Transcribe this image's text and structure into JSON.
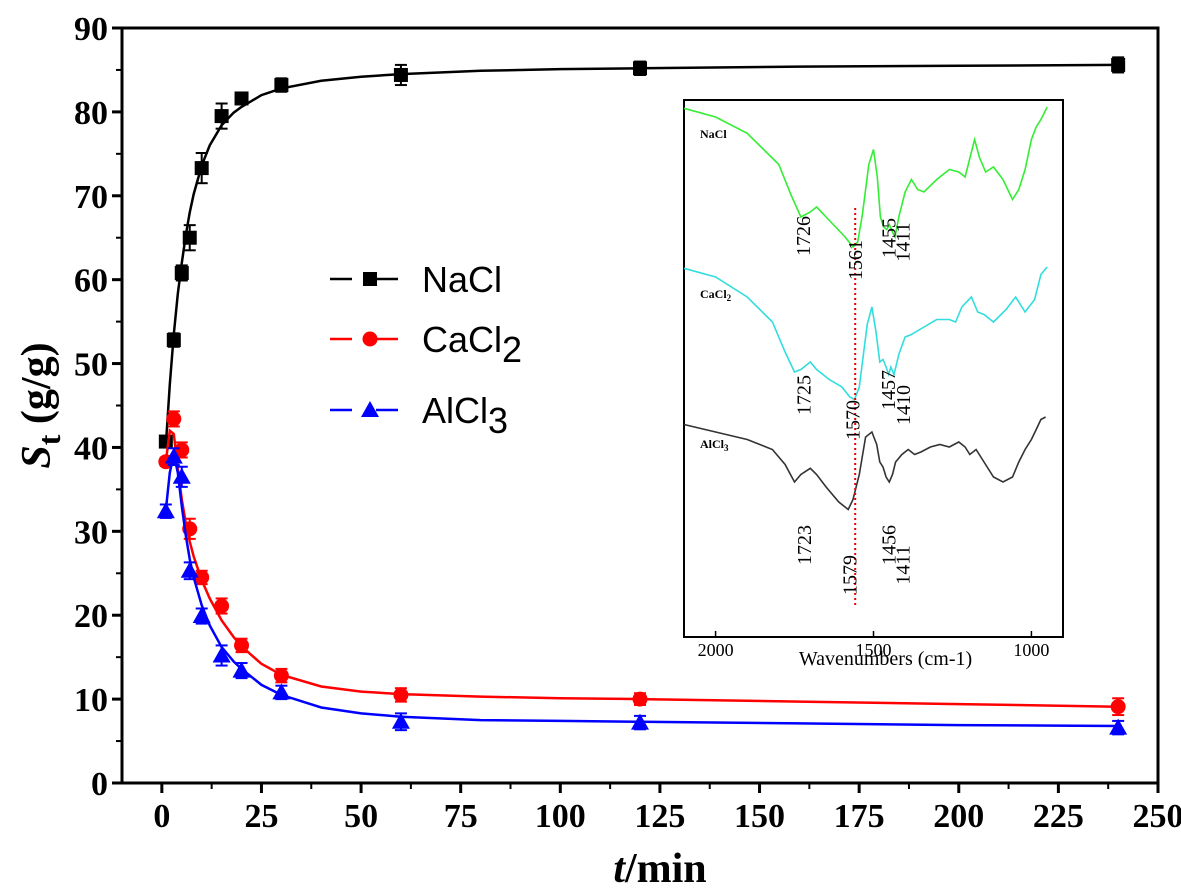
{
  "chart_data": {
    "type": "line",
    "xlabel": "min",
    "xlabel_italic": "t",
    "xlabel_sep": "/",
    "ylabel_main": "S",
    "ylabel_sub": "t",
    "ylabel_unit": " (g/g)",
    "xlim": [
      -10,
      250
    ],
    "ylim": [
      0,
      90
    ],
    "xticks": [
      "0",
      "25",
      "50",
      "75",
      "100",
      "125",
      "150",
      "175",
      "200",
      "225",
      "250"
    ],
    "yticks": [
      "0",
      "10",
      "20",
      "30",
      "40",
      "50",
      "60",
      "70",
      "80",
      "90"
    ],
    "legend_position": "center-left",
    "series": [
      {
        "name": "NaCl",
        "name_sub": "",
        "color": "#000000",
        "marker": "square",
        "x": [
          1,
          3,
          5,
          7,
          10,
          15,
          20,
          30,
          60,
          120,
          240
        ],
        "y": [
          40.7,
          52.8,
          60.8,
          65.0,
          73.3,
          79.5,
          81.6,
          83.2,
          84.4,
          85.2,
          85.6
        ],
        "err": [
          0.6,
          0.8,
          0.9,
          1.5,
          1.8,
          1.5,
          0.6,
          0.8,
          1.2,
          0.8,
          0.9
        ],
        "fit": [
          [
            1,
            40.2
          ],
          [
            2,
            47.5
          ],
          [
            3,
            53.5
          ],
          [
            4,
            58.3
          ],
          [
            5,
            62.0
          ],
          [
            6,
            65.3
          ],
          [
            7,
            68.0
          ],
          [
            8,
            70.2
          ],
          [
            10,
            73.6
          ],
          [
            12,
            76.0
          ],
          [
            15,
            78.4
          ],
          [
            18,
            79.9
          ],
          [
            20,
            80.6
          ],
          [
            25,
            82.0
          ],
          [
            30,
            82.8
          ],
          [
            40,
            83.7
          ],
          [
            50,
            84.2
          ],
          [
            60,
            84.5
          ],
          [
            80,
            84.9
          ],
          [
            100,
            85.1
          ],
          [
            120,
            85.2
          ],
          [
            160,
            85.4
          ],
          [
            200,
            85.5
          ],
          [
            240,
            85.6
          ]
        ]
      },
      {
        "name": "CaCl",
        "name_sub": "2",
        "color": "#ff0000",
        "marker": "circle",
        "x": [
          1,
          3,
          5,
          7,
          10,
          15,
          20,
          30,
          60,
          120,
          240
        ],
        "y": [
          38.3,
          43.4,
          39.7,
          30.3,
          24.5,
          21.1,
          16.4,
          12.8,
          10.5,
          10.0,
          9.1
        ],
        "err": [
          0.5,
          0.9,
          0.9,
          1.2,
          0.8,
          0.9,
          0.8,
          0.8,
          0.8,
          0.7,
          1.0
        ],
        "fit": [
          [
            1,
            38.3
          ],
          [
            2,
            42.0
          ],
          [
            3,
            41.6
          ],
          [
            4,
            37.5
          ],
          [
            5,
            33.8
          ],
          [
            6,
            31.0
          ],
          [
            7,
            28.8
          ],
          [
            8,
            27.0
          ],
          [
            10,
            24.2
          ],
          [
            12,
            22.0
          ],
          [
            15,
            19.4
          ],
          [
            18,
            17.4
          ],
          [
            20,
            16.3
          ],
          [
            25,
            14.2
          ],
          [
            30,
            12.9
          ],
          [
            40,
            11.5
          ],
          [
            50,
            10.9
          ],
          [
            60,
            10.6
          ],
          [
            80,
            10.3
          ],
          [
            100,
            10.1
          ],
          [
            120,
            10.0
          ],
          [
            160,
            9.7
          ],
          [
            200,
            9.4
          ],
          [
            240,
            9.1
          ]
        ]
      },
      {
        "name": "AlCl",
        "name_sub": "3",
        "color": "#0000ff",
        "marker": "triangle",
        "x": [
          1,
          3,
          5,
          7,
          10,
          15,
          20,
          30,
          60,
          120,
          240
        ],
        "y": [
          32.4,
          38.9,
          36.5,
          25.3,
          19.9,
          15.2,
          13.4,
          10.8,
          7.3,
          7.2,
          6.6
        ],
        "err": [
          0.8,
          1.0,
          1.2,
          1.0,
          0.9,
          1.2,
          0.9,
          0.8,
          1.0,
          0.8,
          0.8
        ],
        "fit": [
          [
            1,
            32.5
          ],
          [
            2,
            37.0
          ],
          [
            3,
            39.2
          ],
          [
            4,
            37.0
          ],
          [
            5,
            33.0
          ],
          [
            6,
            29.5
          ],
          [
            7,
            26.7
          ],
          [
            8,
            24.5
          ],
          [
            10,
            21.2
          ],
          [
            12,
            18.8
          ],
          [
            15,
            16.2
          ],
          [
            18,
            14.5
          ],
          [
            20,
            13.6
          ],
          [
            25,
            11.7
          ],
          [
            30,
            10.5
          ],
          [
            40,
            9.0
          ],
          [
            50,
            8.3
          ],
          [
            60,
            7.9
          ],
          [
            80,
            7.5
          ],
          [
            100,
            7.4
          ],
          [
            120,
            7.3
          ],
          [
            160,
            7.1
          ],
          [
            200,
            6.9
          ],
          [
            240,
            6.8
          ]
        ]
      }
    ],
    "inset": {
      "xlabel": "Wavenumbers (cm-1)",
      "xticks": [
        "2000",
        "1500",
        "1000"
      ],
      "xtick_values": [
        2000,
        1500,
        1000
      ],
      "xlim": [
        2100,
        900
      ],
      "marker_line_x": 1558,
      "spectra": [
        {
          "name": "NaCl",
          "color": "#33ee33",
          "offset": 0,
          "points": [
            [
              2100,
              5
            ],
            [
              2000,
              12
            ],
            [
              1900,
              25
            ],
            [
              1800,
              50
            ],
            [
              1760,
              75
            ],
            [
              1730,
              92
            ],
            [
              1700,
              88
            ],
            [
              1680,
              84
            ],
            [
              1650,
              92
            ],
            [
              1620,
              100
            ],
            [
              1590,
              108
            ],
            [
              1565,
              116
            ],
            [
              1550,
              112
            ],
            [
              1535,
              90
            ],
            [
              1515,
              50
            ],
            [
              1500,
              38
            ],
            [
              1488,
              60
            ],
            [
              1478,
              92
            ],
            [
              1468,
              100
            ],
            [
              1458,
              102
            ],
            [
              1450,
              98
            ],
            [
              1440,
              104
            ],
            [
              1432,
              108
            ],
            [
              1420,
              92
            ],
            [
              1400,
              72
            ],
            [
              1380,
              62
            ],
            [
              1360,
              70
            ],
            [
              1340,
              72
            ],
            [
              1300,
              62
            ],
            [
              1260,
              54
            ],
            [
              1230,
              56
            ],
            [
              1210,
              60
            ],
            [
              1190,
              40
            ],
            [
              1180,
              30
            ],
            [
              1165,
              44
            ],
            [
              1145,
              56
            ],
            [
              1120,
              52
            ],
            [
              1090,
              62
            ],
            [
              1060,
              78
            ],
            [
              1040,
              70
            ],
            [
              1020,
              54
            ],
            [
              1000,
              30
            ],
            [
              985,
              20
            ],
            [
              970,
              14
            ],
            [
              950,
              4
            ]
          ]
        },
        {
          "name": "CaCl",
          "name_sub": "2",
          "color": "#33dddd",
          "offset": 1,
          "points": [
            [
              2100,
              5
            ],
            [
              2000,
              12
            ],
            [
              1900,
              28
            ],
            [
              1820,
              48
            ],
            [
              1780,
              72
            ],
            [
              1750,
              88
            ],
            [
              1730,
              86
            ],
            [
              1700,
              80
            ],
            [
              1680,
              86
            ],
            [
              1640,
              94
            ],
            [
              1600,
              100
            ],
            [
              1575,
              108
            ],
            [
              1560,
              110
            ],
            [
              1545,
              100
            ],
            [
              1520,
              50
            ],
            [
              1505,
              36
            ],
            [
              1492,
              56
            ],
            [
              1480,
              80
            ],
            [
              1470,
              78
            ],
            [
              1460,
              84
            ],
            [
              1452,
              90
            ],
            [
              1445,
              84
            ],
            [
              1435,
              90
            ],
            [
              1420,
              74
            ],
            [
              1400,
              60
            ],
            [
              1380,
              58
            ],
            [
              1340,
              52
            ],
            [
              1300,
              46
            ],
            [
              1260,
              46
            ],
            [
              1240,
              48
            ],
            [
              1220,
              36
            ],
            [
              1190,
              28
            ],
            [
              1170,
              40
            ],
            [
              1150,
              42
            ],
            [
              1120,
              48
            ],
            [
              1080,
              38
            ],
            [
              1050,
              28
            ],
            [
              1020,
              40
            ],
            [
              990,
              30
            ],
            [
              970,
              10
            ],
            [
              950,
              4
            ]
          ]
        },
        {
          "name": "AlCl",
          "name_sub": "3",
          "color": "#333333",
          "offset": 2,
          "points": [
            [
              2100,
              10
            ],
            [
              2000,
              16
            ],
            [
              1900,
              22
            ],
            [
              1820,
              30
            ],
            [
              1780,
              42
            ],
            [
              1750,
              56
            ],
            [
              1730,
              50
            ],
            [
              1700,
              45
            ],
            [
              1680,
              50
            ],
            [
              1650,
              60
            ],
            [
              1610,
              72
            ],
            [
              1580,
              78
            ],
            [
              1565,
              70
            ],
            [
              1545,
              50
            ],
            [
              1525,
              20
            ],
            [
              1505,
              16
            ],
            [
              1490,
              26
            ],
            [
              1480,
              40
            ],
            [
              1470,
              44
            ],
            [
              1460,
              52
            ],
            [
              1450,
              56
            ],
            [
              1440,
              50
            ],
            [
              1430,
              40
            ],
            [
              1410,
              34
            ],
            [
              1390,
              30
            ],
            [
              1370,
              34
            ],
            [
              1350,
              32
            ],
            [
              1320,
              28
            ],
            [
              1290,
              26
            ],
            [
              1260,
              28
            ],
            [
              1230,
              24
            ],
            [
              1210,
              28
            ],
            [
              1195,
              34
            ],
            [
              1175,
              30
            ],
            [
              1150,
              40
            ],
            [
              1120,
              52
            ],
            [
              1090,
              56
            ],
            [
              1060,
              52
            ],
            [
              1040,
              40
            ],
            [
              1020,
              30
            ],
            [
              1000,
              22
            ],
            [
              985,
              14
            ],
            [
              970,
              6
            ],
            [
              955,
              4
            ]
          ]
        }
      ],
      "annotations": [
        {
          "label": "1726",
          "wn": 1726,
          "row": 0
        },
        {
          "label": "1561",
          "wn": 1561,
          "row": 0
        },
        {
          "label": "1455",
          "wn": 1455,
          "row": 0
        },
        {
          "label": "1411",
          "wn": 1411,
          "row": 0
        },
        {
          "label": "1725",
          "wn": 1725,
          "row": 1
        },
        {
          "label": "1570",
          "wn": 1570,
          "row": 1
        },
        {
          "label": "1457",
          "wn": 1457,
          "row": 1
        },
        {
          "label": "1410",
          "wn": 1410,
          "row": 1
        },
        {
          "label": "1723",
          "wn": 1723,
          "row": 2
        },
        {
          "label": "1579",
          "wn": 1579,
          "row": 2
        },
        {
          "label": "1456",
          "wn": 1456,
          "row": 2
        },
        {
          "label": "1411",
          "wn": 1411,
          "row": 2
        }
      ]
    }
  }
}
